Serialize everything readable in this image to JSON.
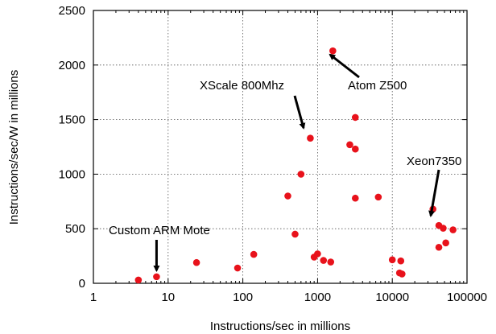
{
  "chart_data": {
    "type": "scatter",
    "xlabel": "Instructions/sec in millions",
    "ylabel": "Instructions/sec/W in millions",
    "x_scale": "log",
    "xlim": [
      1,
      100000
    ],
    "ylim": [
      0,
      2500
    ],
    "x_ticks": [
      1,
      10,
      100,
      1000,
      10000,
      100000
    ],
    "x_tick_labels": [
      "1",
      "10",
      "100",
      "1000",
      "10000",
      "100000"
    ],
    "y_ticks": [
      0,
      500,
      1000,
      1500,
      2000,
      2500
    ],
    "y_tick_labels": [
      "0",
      "500",
      "1000",
      "1500",
      "2000",
      "2500"
    ],
    "grid": true,
    "marker_color": "#e8121b",
    "points": [
      {
        "x": 4,
        "y": 30
      },
      {
        "x": 7,
        "y": 60
      },
      {
        "x": 24,
        "y": 190
      },
      {
        "x": 85,
        "y": 140
      },
      {
        "x": 140,
        "y": 265
      },
      {
        "x": 400,
        "y": 800
      },
      {
        "x": 500,
        "y": 450
      },
      {
        "x": 600,
        "y": 1000
      },
      {
        "x": 800,
        "y": 1330
      },
      {
        "x": 900,
        "y": 240
      },
      {
        "x": 1000,
        "y": 270
      },
      {
        "x": 1200,
        "y": 210
      },
      {
        "x": 1500,
        "y": 195
      },
      {
        "x": 1600,
        "y": 2130
      },
      {
        "x": 2700,
        "y": 1270
      },
      {
        "x": 3200,
        "y": 1520
      },
      {
        "x": 3200,
        "y": 1230
      },
      {
        "x": 3200,
        "y": 780
      },
      {
        "x": 6500,
        "y": 790
      },
      {
        "x": 10000,
        "y": 215
      },
      {
        "x": 12500,
        "y": 95
      },
      {
        "x": 13000,
        "y": 205
      },
      {
        "x": 13500,
        "y": 85
      },
      {
        "x": 35000,
        "y": 680
      },
      {
        "x": 42000,
        "y": 530
      },
      {
        "x": 42000,
        "y": 330
      },
      {
        "x": 48000,
        "y": 505
      },
      {
        "x": 52000,
        "y": 370
      },
      {
        "x": 65000,
        "y": 490
      }
    ],
    "annotations": [
      {
        "text": "Custom ARM Mote",
        "target_x": 7,
        "target_y": 60
      },
      {
        "text": "XScale 800Mhz",
        "target_x": 800,
        "target_y": 1330
      },
      {
        "text": "Atom Z500",
        "target_x": 1600,
        "target_y": 2130
      },
      {
        "text": "Xeon7350",
        "target_x": 42000,
        "target_y": 530
      }
    ]
  }
}
